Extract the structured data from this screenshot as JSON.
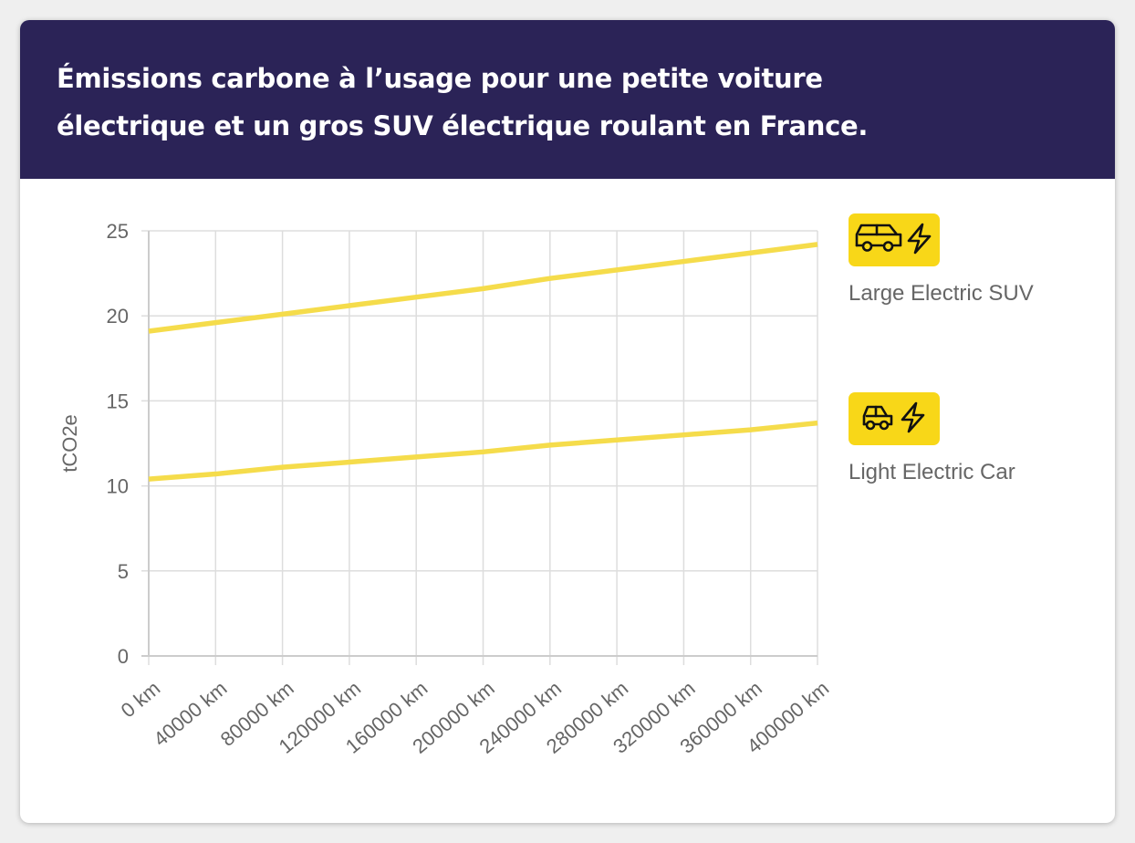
{
  "title": "Émissions carbone à l’usage pour une petite voiture électrique et un gros SUV électrique roulant en France.",
  "legend": [
    {
      "label": "Large Electric SUV",
      "icon": "suv-electric-icon"
    },
    {
      "label": "Light Electric Car",
      "icon": "car-electric-icon"
    }
  ],
  "colors": {
    "header_bg": "#2b2357",
    "series_line": "#f5dc4b",
    "badge": "#f8d718",
    "grid": "#dddddd",
    "text": "#666666"
  },
  "chart_data": {
    "type": "line",
    "title": "Émissions carbone à l’usage pour une petite voiture électrique et un gros SUV électrique roulant en France.",
    "xlabel": "",
    "ylabel": "tCO2e",
    "x": [
      0,
      40000,
      80000,
      120000,
      160000,
      200000,
      240000,
      280000,
      320000,
      360000,
      400000
    ],
    "categories": [
      "0 km",
      "40000 km",
      "80000 km",
      "120000 km",
      "160000 km",
      "200000 km",
      "240000 km",
      "280000 km",
      "320000 km",
      "360000 km",
      "400000 km"
    ],
    "ylim": [
      0,
      25
    ],
    "yticks": [
      0,
      5,
      10,
      15,
      20,
      25
    ],
    "grid": true,
    "legend_position": "right",
    "series": [
      {
        "name": "Large Electric SUV",
        "values": [
          19.1,
          19.6,
          20.1,
          20.6,
          21.1,
          21.6,
          22.2,
          22.7,
          23.2,
          23.7,
          24.2
        ]
      },
      {
        "name": "Light Electric Car",
        "values": [
          10.4,
          10.7,
          11.1,
          11.4,
          11.7,
          12.0,
          12.4,
          12.7,
          13.0,
          13.3,
          13.7
        ]
      }
    ]
  }
}
